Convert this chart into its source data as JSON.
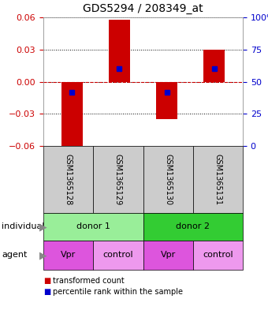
{
  "title": "GDS5294 / 208349_at",
  "bar_values": [
    -0.065,
    0.058,
    -0.035,
    0.03
  ],
  "percentile_values": [
    -0.01,
    0.012,
    -0.01,
    0.012
  ],
  "sample_labels": [
    "GSM1365128",
    "GSM1365129",
    "GSM1365130",
    "GSM1365131"
  ],
  "individual_labels": [
    "donor 1",
    "donor 2"
  ],
  "agent_labels": [
    "Vpr",
    "control",
    "Vpr",
    "control"
  ],
  "ylim": [
    -0.06,
    0.06
  ],
  "yticks_left": [
    -0.06,
    -0.03,
    0,
    0.03,
    0.06
  ],
  "yticks_right": [
    0,
    25,
    50,
    75,
    100
  ],
  "bar_color": "#cc0000",
  "dot_color": "#0000cc",
  "bar_width": 0.45,
  "zero_line_color": "#cc0000",
  "donor1_color": "#99ee99",
  "donor2_color": "#33cc33",
  "vpr_color": "#dd55dd",
  "control_color": "#ee99ee",
  "sample_box_color": "#cccccc",
  "left_yaxis_color": "#cc0000",
  "right_yaxis_color": "#0000cc",
  "bg_color": "#ffffff",
  "legend_items": [
    {
      "color": "#cc0000",
      "label": "transformed count"
    },
    {
      "color": "#0000cc",
      "label": "percentile rank within the sample"
    }
  ]
}
